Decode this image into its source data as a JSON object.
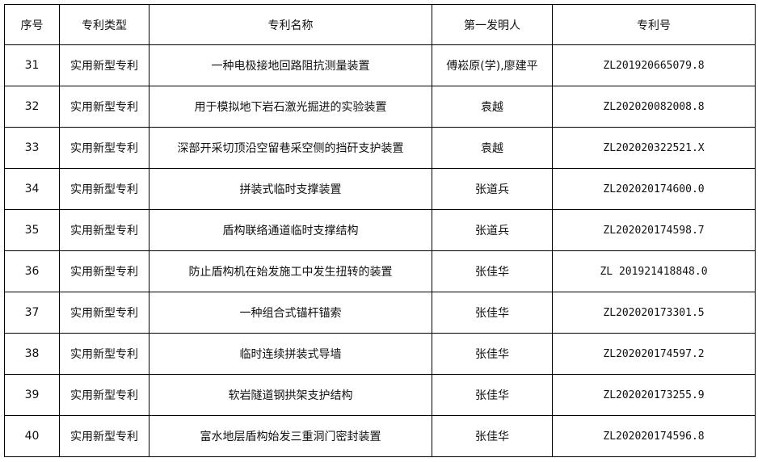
{
  "headers": [
    "序号",
    "专利类型",
    "专利名称",
    "第一发明人",
    "专利号"
  ],
  "rows": [
    [
      "31",
      "实用新型专利",
      "一种电极接地回路阻抗测量装置",
      "傅崧原(学),廖建平",
      "ZL201920665079.8"
    ],
    [
      "32",
      "实用新型专利",
      "用于模拟地下岩石激光掘进的实验装置",
      "袁越",
      "ZL202020082008.8"
    ],
    [
      "33",
      "实用新型专利",
      "深部开采切顶沿空留巷采空侧的挡矸支护装置",
      "袁越",
      "ZL202020322521.X"
    ],
    [
      "34",
      "实用新型专利",
      "拼装式临时支撑装置",
      "张道兵",
      "ZL202020174600.0"
    ],
    [
      "35",
      "实用新型专利",
      "盾构联络通道临时支撑结构",
      "张道兵",
      "ZL202020174598.7"
    ],
    [
      "36",
      "实用新型专利",
      "防止盾构机在始发施工中发生扭转的装置",
      "张佳华",
      "ZL 201921418848.0"
    ],
    [
      "37",
      "实用新型专利",
      "一种组合式锚杆锚索",
      "张佳华",
      "ZL202020173301.5"
    ],
    [
      "38",
      "实用新型专利",
      "临时连续拼装式导墙",
      "张佳华",
      "ZL202020174597.2"
    ],
    [
      "39",
      "实用新型专利",
      "软岩隧道钢拱架支护结构",
      "张佳华",
      "ZL202020173255.9"
    ],
    [
      "40",
      "实用新型专利",
      "富水地层盾构始发三重洞门密封装置",
      "张佳华",
      "ZL202020174596.8"
    ]
  ]
}
